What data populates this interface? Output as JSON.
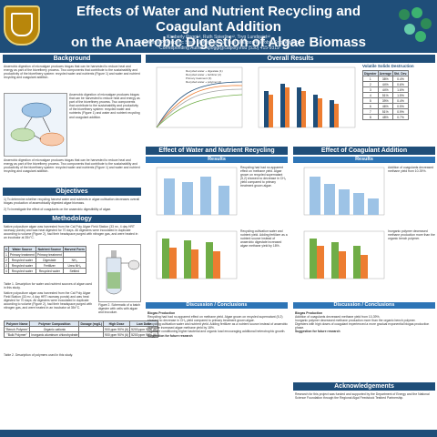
{
  "header": {
    "title_line1": "Effects of Water and Nutrient Recycling and Coagulant Addition",
    "title_line2": "on the Anaerobic Digestion of Algae Biomass",
    "authors": "Kimberly Poggi¹², Ruth Spierling¹², Tryg Lundquist¹²",
    "affil1": "¹California Polytechnic State University San Luis Obispo; ²Microbio Engineering",
    "affil2": "*Corresponding Author: kpoggi@calpoly.edu (530) 415-9319"
  },
  "sections": {
    "background": "Background",
    "objectives": "Objectives",
    "methodology": "Methodology",
    "overall_results": "Overall Results",
    "water_effect": "Effect of Water and Nutrient Recycling",
    "coag_effect": "Effect of Coagulant Addition",
    "results": "Results",
    "discussion": "Discussion / Conclusions",
    "ack": "Acknowledgements"
  },
  "background_text": "Anaerobic digestion of microalgae produces biogas that can be harvested to reduce heat and energy as part of the biorefinery process. Two components that contribute to the sustainability and productivity of the biorefinery system: recycled water and nutrients (Figure 1) and water and nutrient recycling and coagulant addition.",
  "objectives": [
    "1) To determine whether recycling harvest water and nutrients in algae cultivation decreases overall biogas production of anaerobically digested algae biomass.",
    "2) To investigate the effect of coagulants on the anaerobic digestibility of algae."
  ],
  "methodology_text": "Native polyculture algae was harvested from the Cal Poly Algae Field Station (33 m², 4 day HRT raceway ponds) and was heat digested for 70 days. All digesters were inoculated in duplicate according to volume (Figure 2), had their headspace purged with nitrogen gas, and were heated in an incubator at 35±°C.",
  "fig2_caption": "Figure 2. Schematic of a batch digester with cells with algae and inoculum.",
  "table1": {
    "headers": [
      "#",
      "Water Source",
      "Nutrient Source",
      "Harvest Form"
    ],
    "rows": [
      [
        "1",
        "Primary treatment",
        "Primary treatment",
        ""
      ],
      [
        "2",
        "Recycled water",
        "Digestate",
        "NH₄"
      ],
      [
        "3",
        "Recycled water",
        "Fertilizer",
        "Urea NH₄"
      ],
      [
        "4",
        "Recycled water",
        "Recycled water",
        "Settled"
      ]
    ],
    "caption": "Table 1. Description for water and nutrient sources of algae used in this study."
  },
  "table2": {
    "headers": [
      "Polymer Name",
      "Polymer Composition",
      "Dosage (mg/L)",
      "High Dose",
      "Low Dose"
    ],
    "rows": [
      [
        "\"Bench Polymer\"",
        "Organic cationic",
        "",
        "900 ppm 90% (6)",
        "5200 ppm 90% (6)"
      ],
      [
        "\"Bulk Polymer\"",
        "Inorganic aluminum chlorohydrate",
        "",
        "900 ppm 90% (6)",
        "5200 ppm 90% (6)"
      ]
    ],
    "caption": "Table 2. Description of polymers used in this study."
  },
  "overall_chart": {
    "legend": [
      "Recycled water + digestate (1)",
      "Recycled water + fertilizer (2)",
      "Primary treatment (3)",
      "Recycled water + polymer (4)"
    ]
  },
  "solids_table": {
    "title": "Volatile Solids Destruction",
    "headers": [
      "Digester",
      "Average",
      "Std. Dev."
    ],
    "rows": [
      [
        "1",
        "38%",
        "0.4%"
      ],
      [
        "2",
        "44%",
        "0.6%"
      ],
      [
        "3",
        "44%",
        "1.6%"
      ],
      [
        "4",
        "51%",
        "1.5%"
      ],
      [
        "5",
        "39%",
        "0.4%"
      ],
      [
        "6",
        "46%",
        "0.5%"
      ],
      [
        "7",
        "51%",
        "0.9%"
      ],
      [
        "8",
        "48%",
        "0.7%"
      ]
    ]
  },
  "discussion_left": [
    "Biogas Production",
    "Recycling had had no apparent effect on methane yield. Algae grown on recycled supernatant (5,2) showed no decrease in CH₄ yield compared to primary treatment grown algae.",
    "Recycling cultivation water and nutrient yield. Adding fertilizer as a nutrient source instead of anaerobic digestate increased algae methane yield by 18%.",
    "Digestate conditioning higher bacterial and organic load encouraging additional heterotrophic growth.",
    "Suggestion for future research"
  ],
  "discussion_right": [
    "Biogas Production",
    "Addition of coagulants decreased methane yield from 10-39%.",
    "Inorganic polymer decreased methane production more than the organic bench polymer.",
    "Digesters with high doses of coagulant experienced a more gradual exponential biogas production phase.",
    "Suggestion for future research"
  ],
  "ack_text": "Research for this project was funded and supported by the Department of Energy and the National Science Foundation through the Regional Algal Feedstock Testbed Partnership.",
  "colors": {
    "navy": "#1f4e79",
    "blue": "#2e75b6",
    "orange": "#ed7d31",
    "green": "#70ad47",
    "gray": "#a5a5a5"
  }
}
